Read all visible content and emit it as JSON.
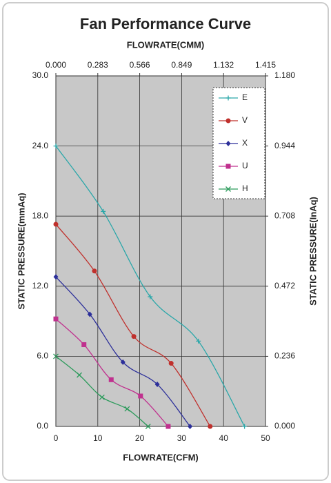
{
  "chart_data": {
    "type": "line",
    "title": "Fan Performance Curve",
    "x_label": "FLOWRATE(CFM)",
    "x2_label": "FLOWRATE(CMM)",
    "y_label": "STATIC PRESSURE(mmAq)",
    "y2_label": "STATIC PRESSURE(InAq)",
    "xlim": [
      0,
      50
    ],
    "xticks": [
      0,
      10,
      20,
      30,
      40,
      50
    ],
    "x2lim": [
      0,
      1.415
    ],
    "x2ticks": [
      {
        "value": 0,
        "label": "0.000"
      },
      0.283,
      0.566,
      0.849,
      1.132,
      1.415
    ],
    "ylim": [
      0,
      30
    ],
    "yticks": [
      {
        "value": 0,
        "label": "0.0"
      },
      {
        "value": 6,
        "label": "6.0"
      },
      {
        "value": 12,
        "label": "12.0"
      },
      {
        "value": 18,
        "label": "18.0"
      },
      {
        "value": 24,
        "label": "24.0"
      },
      {
        "value": 30,
        "label": "30.0"
      }
    ],
    "y2lim": [
      0,
      1.18
    ],
    "y2ticks": [
      {
        "value": 0,
        "label": "0.000"
      },
      0.236,
      0.472,
      0.708,
      0.944,
      {
        "value": 1.18,
        "label": "1.180"
      }
    ],
    "grid": true,
    "legend": "upper right",
    "series": [
      {
        "name": "E",
        "color": "#2aa7a9",
        "marker": "plus",
        "x": [
          0,
          11.3,
          22.5,
          34,
          45
        ],
        "values": [
          24,
          18.4,
          11.1,
          7.3,
          0
        ]
      },
      {
        "name": "V",
        "color": "#c0302c",
        "marker": "circle",
        "x": [
          0,
          9.2,
          18.6,
          27.5,
          36.8
        ],
        "values": [
          17.3,
          13.3,
          7.7,
          5.4,
          0
        ]
      },
      {
        "name": "X",
        "color": "#2c2f9a",
        "marker": "diamond",
        "x": [
          0,
          8.1,
          16,
          24.2,
          32
        ],
        "values": [
          12.8,
          9.6,
          5.5,
          3.6,
          0
        ]
      },
      {
        "name": "U",
        "color": "#c0308e",
        "marker": "square",
        "x": [
          0,
          6.7,
          13.2,
          20.2,
          26.8
        ],
        "values": [
          9.2,
          7,
          4,
          2.6,
          0
        ]
      },
      {
        "name": "H",
        "color": "#2a9a5a",
        "marker": "cross",
        "x": [
          0,
          5.6,
          11,
          17,
          22
        ],
        "values": [
          6,
          4.4,
          2.5,
          1.5,
          0
        ]
      }
    ]
  }
}
